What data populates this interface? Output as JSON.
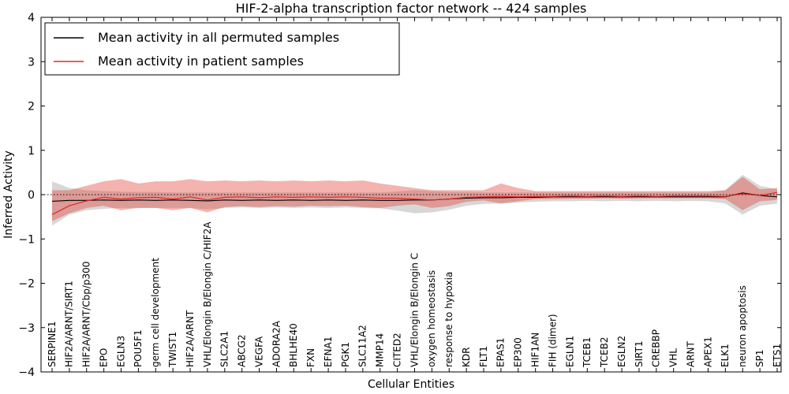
{
  "chart_data": {
    "type": "line",
    "title": "HIF-2-alpha transcription factor network -- 424 samples",
    "xlabel": "Cellular Entities",
    "ylabel": "Inferred Activity",
    "ylim": [
      -4,
      4
    ],
    "yticks": [
      4,
      3,
      2,
      1,
      0,
      -1,
      -2,
      -3,
      -4
    ],
    "grid": false,
    "legend_position": "upper left",
    "reference_line": {
      "y": 0,
      "style": "dotted",
      "color": "#000000"
    },
    "categories": [
      "SERPINE1",
      "HIF2A/ARNT/SIRT1",
      "HIF2A/ARNT/Cbp/p300",
      "EPO",
      "EGLN3",
      "POU5F1",
      "germ cell development",
      "TWIST1",
      "HIF2A/ARNT",
      "VHL/Elongin B/Elongin C/HIF2A",
      "SLC2A1",
      "ABCG2",
      "VEGFA",
      "ADORA2A",
      "BHLHE40",
      "FXN",
      "EFNA1",
      "PGK1",
      "SLC11A2",
      "MMP14",
      "CITED2",
      "VHL/Elongin B/Elongin C",
      "oxygen homeostasis",
      "response to hypoxia",
      "KDR",
      "FLT1",
      "EPAS1",
      "EP300",
      "HIF1AN",
      "FIH (dimer)",
      "EGLN1",
      "TCEB1",
      "TCEB2",
      "EGLN2",
      "SIRT1",
      "CREBBP",
      "VHL",
      "ARNT",
      "APEX1",
      "ELK1",
      "neuron apoptosis",
      "SP1",
      "ETS1"
    ],
    "series": [
      {
        "name": "Mean activity in all permuted samples",
        "color": "#000000",
        "line_width": 1.1,
        "band_color": "#9a9a9a",
        "band_opacity": 0.4,
        "band_name": "permuted-confidence-band",
        "line_name": "permuted-mean-line",
        "values": [
          -0.15,
          -0.13,
          -0.13,
          -0.12,
          -0.13,
          -0.12,
          -0.13,
          -0.12,
          -0.13,
          -0.14,
          -0.12,
          -0.13,
          -0.12,
          -0.13,
          -0.12,
          -0.13,
          -0.12,
          -0.13,
          -0.12,
          -0.13,
          -0.13,
          -0.12,
          -0.12,
          -0.1,
          -0.08,
          -0.07,
          -0.07,
          -0.06,
          -0.06,
          -0.05,
          -0.05,
          -0.05,
          -0.05,
          -0.05,
          -0.05,
          -0.05,
          -0.05,
          -0.05,
          -0.05,
          -0.05,
          0.04,
          -0.02,
          -0.05
        ],
        "band_lower": [
          -0.7,
          -0.45,
          -0.35,
          -0.32,
          -0.3,
          -0.3,
          -0.3,
          -0.3,
          -0.3,
          -0.33,
          -0.3,
          -0.29,
          -0.3,
          -0.29,
          -0.3,
          -0.29,
          -0.3,
          -0.29,
          -0.3,
          -0.31,
          -0.36,
          -0.42,
          -0.4,
          -0.34,
          -0.25,
          -0.21,
          -0.2,
          -0.18,
          -0.16,
          -0.15,
          -0.15,
          -0.14,
          -0.15,
          -0.14,
          -0.15,
          -0.14,
          -0.15,
          -0.14,
          -0.15,
          -0.2,
          -0.45,
          -0.25,
          -0.2
        ],
        "band_upper": [
          0.3,
          0.15,
          0.1,
          0.08,
          0.07,
          0.06,
          0.06,
          0.05,
          0.05,
          0.05,
          0.05,
          0.05,
          0.05,
          0.05,
          0.05,
          0.05,
          0.05,
          0.05,
          0.05,
          0.05,
          0.07,
          0.1,
          0.08,
          0.06,
          0.06,
          0.05,
          0.05,
          0.05,
          0.05,
          0.05,
          0.05,
          0.05,
          0.05,
          0.05,
          0.05,
          0.05,
          0.05,
          0.05,
          0.05,
          0.1,
          0.45,
          0.2,
          0.12
        ]
      },
      {
        "name": "Mean activity in patient samples",
        "color": "#e02626",
        "line_width": 1.2,
        "band_color": "#e34234",
        "band_opacity": 0.4,
        "band_name": "patient-confidence-band",
        "line_name": "patient-mean-line",
        "values": [
          -0.45,
          -0.25,
          -0.14,
          -0.06,
          -0.1,
          -0.07,
          -0.06,
          -0.1,
          -0.05,
          -0.12,
          -0.06,
          -0.05,
          -0.07,
          -0.05,
          -0.06,
          -0.05,
          -0.06,
          -0.05,
          -0.06,
          -0.08,
          -0.08,
          -0.1,
          -0.12,
          -0.1,
          -0.06,
          -0.05,
          -0.04,
          -0.05,
          -0.04,
          -0.04,
          -0.03,
          -0.04,
          -0.03,
          -0.04,
          -0.03,
          -0.04,
          -0.03,
          -0.03,
          -0.03,
          -0.04,
          0.02,
          -0.02,
          0.05
        ],
        "band_lower": [
          -0.6,
          -0.42,
          -0.3,
          -0.25,
          -0.35,
          -0.3,
          -0.3,
          -0.35,
          -0.3,
          -0.4,
          -0.28,
          -0.26,
          -0.28,
          -0.26,
          -0.27,
          -0.25,
          -0.26,
          -0.25,
          -0.28,
          -0.3,
          -0.25,
          -0.22,
          -0.3,
          -0.26,
          -0.16,
          -0.13,
          -0.2,
          -0.15,
          -0.1,
          -0.1,
          -0.09,
          -0.09,
          -0.08,
          -0.09,
          -0.08,
          -0.08,
          -0.08,
          -0.08,
          -0.08,
          -0.1,
          -0.35,
          -0.15,
          -0.12
        ],
        "band_upper": [
          0.1,
          0.1,
          0.2,
          0.3,
          0.35,
          0.25,
          0.3,
          0.3,
          0.35,
          0.3,
          0.32,
          0.3,
          0.32,
          0.3,
          0.32,
          0.3,
          0.32,
          0.3,
          0.32,
          0.25,
          0.2,
          0.15,
          0.1,
          0.1,
          0.1,
          0.1,
          0.25,
          0.15,
          0.08,
          0.08,
          0.08,
          0.08,
          0.08,
          0.08,
          0.08,
          0.08,
          0.08,
          0.08,
          0.08,
          0.1,
          0.4,
          0.12,
          0.15
        ]
      }
    ]
  }
}
